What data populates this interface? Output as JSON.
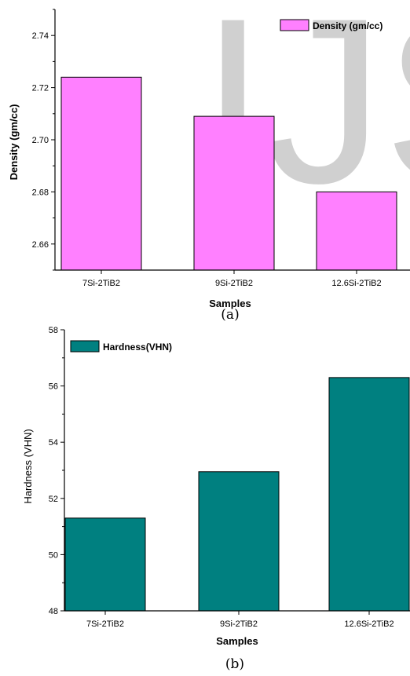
{
  "chart_data": [
    {
      "type": "bar",
      "categories": [
        "7Si-2TiB2",
        "9Si-2TiB2",
        "12.6Si-2TiB2"
      ],
      "series": [
        {
          "name": "Density (gm/cc)",
          "values": [
            2.724,
            2.709,
            2.68
          ]
        }
      ],
      "xlabel": "Samples",
      "ylabel": "Density (gm/cc)",
      "ylim": [
        2.65,
        2.75
      ],
      "yticks": [
        "2.66",
        "2.68",
        "2.70",
        "2.72",
        "2.74"
      ],
      "legend": "top-right",
      "grid": false,
      "bar_color": "#ff80ff",
      "caption": "(a)"
    },
    {
      "type": "bar",
      "categories": [
        "7Si-2TiB2",
        "9Si-2TiB2",
        "12.6Si-2TiB2"
      ],
      "series": [
        {
          "name": "Hardness(VHN)",
          "values": [
            51.3,
            52.95,
            56.3
          ]
        }
      ],
      "xlabel": "Samples",
      "ylabel": "Hardness (VHN)",
      "ylim": [
        48,
        58
      ],
      "yticks": [
        "48",
        "50",
        "52",
        "54",
        "56",
        "58"
      ],
      "legend": "top-left",
      "grid": false,
      "bar_color": "#008080",
      "caption": "(b)"
    }
  ],
  "watermark": {
    "text": "IJS",
    "color": "#d0d0d0"
  }
}
